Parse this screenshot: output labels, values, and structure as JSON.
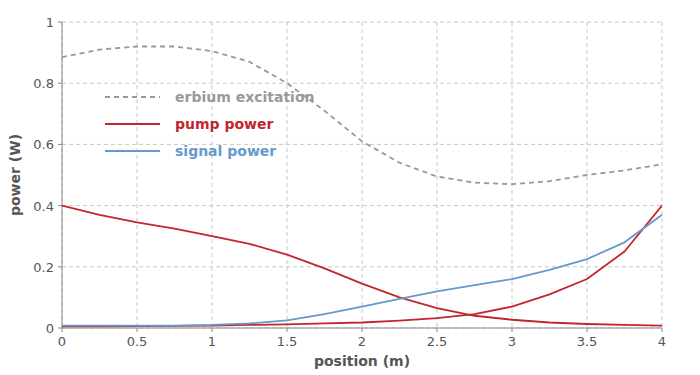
{
  "chart_data": {
    "type": "line",
    "x_label": "position (m)",
    "y_label": "power (W)",
    "x": [
      0,
      0.25,
      0.5,
      0.75,
      1,
      1.25,
      1.5,
      1.75,
      2,
      2.25,
      2.5,
      2.75,
      3,
      3.25,
      3.5,
      3.75,
      4
    ],
    "series": [
      {
        "name": "erbium excitation",
        "color": "#999999",
        "line_style": "dashed",
        "values": [
          0.885,
          0.91,
          0.92,
          0.92,
          0.905,
          0.87,
          0.8,
          0.71,
          0.61,
          0.54,
          0.495,
          0.475,
          0.47,
          0.48,
          0.5,
          0.515,
          0.535
        ]
      },
      {
        "name": "pump power",
        "color": "#c0272d",
        "line_style": "solid",
        "values": [
          0.4,
          0.37,
          0.345,
          0.325,
          0.3,
          0.275,
          0.24,
          0.195,
          0.145,
          0.1,
          0.065,
          0.04,
          0.027,
          0.018,
          0.013,
          0.01,
          0.008
        ]
      },
      {
        "name": "pump power",
        "color": "#c0272d",
        "line_style": "solid",
        "values": [
          0.005,
          0.005,
          0.006,
          0.007,
          0.008,
          0.01,
          0.012,
          0.015,
          0.018,
          0.024,
          0.032,
          0.045,
          0.07,
          0.11,
          0.16,
          0.25,
          0.4
        ]
      },
      {
        "name": "signal power",
        "color": "#6699cc",
        "line_style": "solid",
        "values": [
          0.008,
          0.008,
          0.008,
          0.008,
          0.01,
          0.015,
          0.025,
          0.045,
          0.07,
          0.095,
          0.12,
          0.14,
          0.16,
          0.19,
          0.225,
          0.28,
          0.37
        ]
      }
    ],
    "xlim": [
      0,
      4
    ],
    "ylim": [
      0,
      1
    ],
    "xticks": [
      0,
      0.5,
      1,
      1.5,
      2,
      2.5,
      3,
      3.5,
      4
    ],
    "yticks": [
      0,
      0.2,
      0.4,
      0.6,
      0.8,
      1
    ],
    "grid": true,
    "legend": "upper left"
  }
}
